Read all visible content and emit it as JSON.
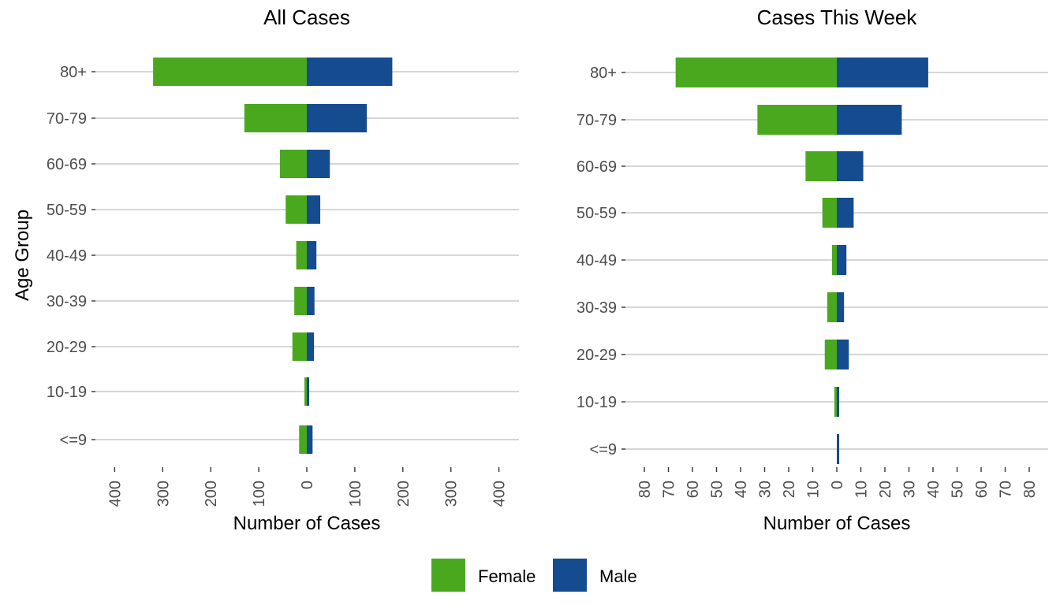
{
  "chart_data": [
    {
      "type": "bar",
      "orientation": "horizontal",
      "stacking": "diverging",
      "title": "All Cases",
      "xlabel": "Number of Cases",
      "ylabel": "Age Group",
      "categories": [
        "<=9",
        "10-19",
        "20-29",
        "30-39",
        "40-49",
        "50-59",
        "60-69",
        "70-79",
        "80+"
      ],
      "series": [
        {
          "name": "Female",
          "values": [
            -16,
            -4,
            -30,
            -26,
            -22,
            -44,
            -56,
            -130,
            -320
          ]
        },
        {
          "name": "Male",
          "values": [
            12,
            5,
            15,
            16,
            20,
            28,
            48,
            125,
            178
          ]
        }
      ],
      "xlim": [
        -400,
        400
      ],
      "xticks": [
        -400,
        -300,
        -200,
        -100,
        0,
        100,
        200,
        300,
        400
      ],
      "xtick_labels": [
        "400",
        "300",
        "200",
        "100",
        "0",
        "100",
        "200",
        "300",
        "400"
      ],
      "grid": "horizontal-major",
      "legend": "bottom"
    },
    {
      "type": "bar",
      "orientation": "horizontal",
      "stacking": "diverging",
      "title": "Cases This Week",
      "xlabel": "Number of Cases",
      "ylabel": "",
      "categories": [
        "<=9",
        "10-19",
        "20-29",
        "30-39",
        "40-49",
        "50-59",
        "60-69",
        "70-79",
        "80+"
      ],
      "series": [
        {
          "name": "Female",
          "values": [
            0,
            -1,
            -5,
            -4,
            -2,
            -6,
            -13,
            -33,
            -67
          ]
        },
        {
          "name": "Male",
          "values": [
            1,
            1,
            5,
            3,
            4,
            7,
            11,
            27,
            38
          ]
        }
      ],
      "xlim": [
        -80,
        80
      ],
      "xticks": [
        -80,
        -70,
        -60,
        -50,
        -40,
        -30,
        -20,
        -10,
        0,
        10,
        20,
        30,
        40,
        50,
        60,
        70,
        80
      ],
      "xtick_labels": [
        "80",
        "70",
        "60",
        "50",
        "40",
        "30",
        "20",
        "10",
        "0",
        "10",
        "20",
        "30",
        "40",
        "50",
        "60",
        "70",
        "80"
      ],
      "grid": "horizontal-major",
      "legend": "bottom"
    }
  ],
  "legend": {
    "items": [
      {
        "label": "Female",
        "color": "#4aa81e"
      },
      {
        "label": "Male",
        "color": "#154b8f"
      }
    ]
  },
  "colors": {
    "Female": "#4aa81e",
    "Male": "#154b8f"
  }
}
